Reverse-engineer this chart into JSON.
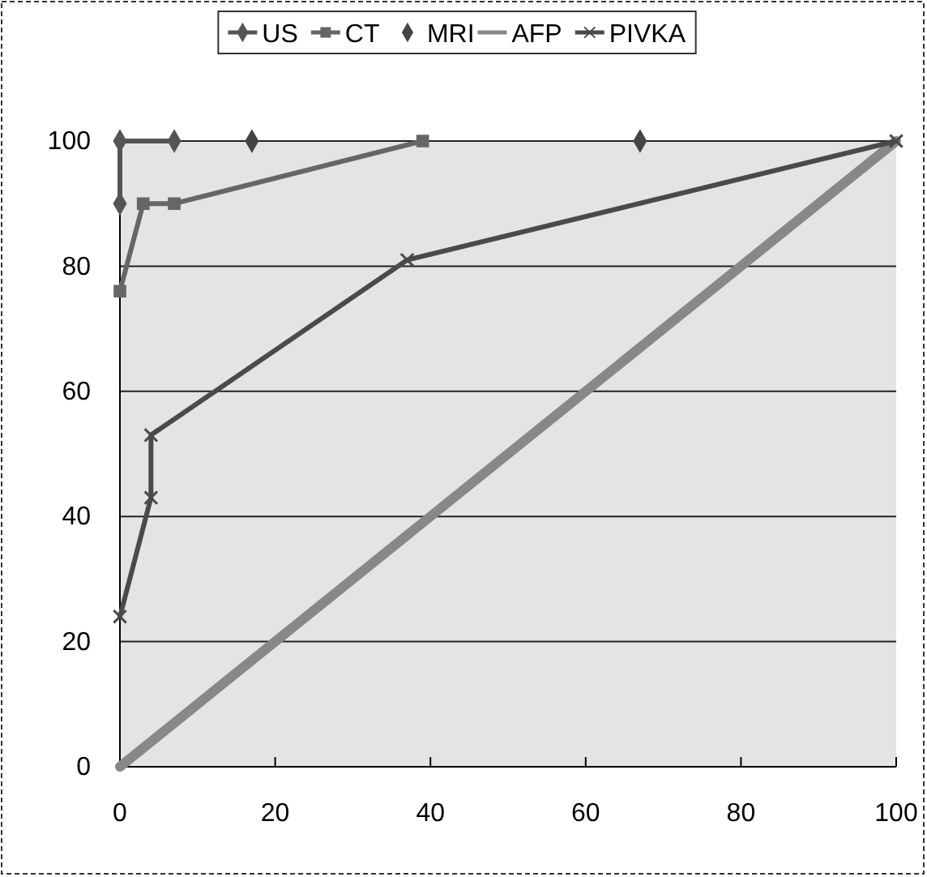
{
  "chart_data": {
    "type": "line",
    "xlim": [
      0,
      100
    ],
    "ylim": [
      0,
      100
    ],
    "xticks": [
      0,
      20,
      40,
      60,
      80,
      100
    ],
    "yticks": [
      0,
      20,
      40,
      60,
      80,
      100
    ],
    "grid": "y",
    "legend": "top",
    "line_style": "solid",
    "series": [
      {
        "name": "US",
        "color": "#555555",
        "marker": "diamond",
        "x": [
          0,
          0,
          7
        ],
        "values": [
          90,
          100,
          100
        ]
      },
      {
        "name": "CT",
        "color": "#666666",
        "marker": "square",
        "x": [
          0,
          3,
          7,
          39
        ],
        "values": [
          76,
          90,
          90,
          100
        ]
      },
      {
        "name": "MRI",
        "type": "scatter",
        "color": "#444444",
        "marker": "diamond",
        "x": [
          17,
          67
        ],
        "values": [
          100,
          100
        ]
      },
      {
        "name": "AFP",
        "color": "#888888",
        "marker": "none",
        "x": [
          0,
          100
        ],
        "values": [
          0,
          100
        ]
      },
      {
        "name": "PIVKA",
        "color": "#4a4a4a",
        "marker": "cross",
        "x": [
          0,
          4,
          4,
          37,
          100
        ],
        "values": [
          24,
          43,
          53,
          81,
          100
        ]
      }
    ]
  }
}
